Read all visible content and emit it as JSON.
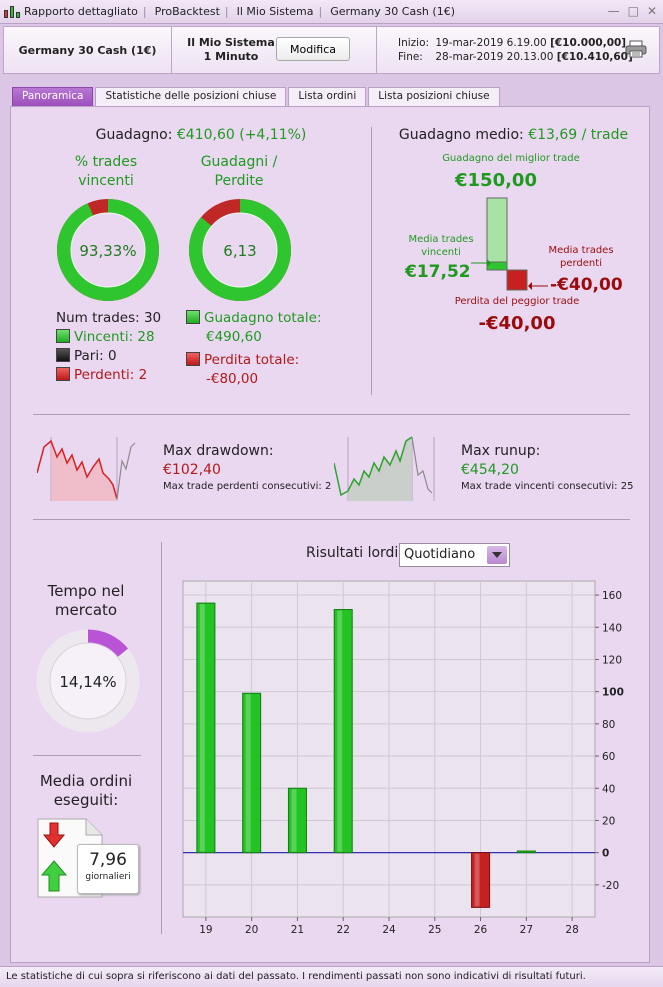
{
  "window": {
    "tab1": "Rapporto dettagliato",
    "tab2": "ProBacktest",
    "tab3": "Il Mio Sistema",
    "tab4": "Germany 30 Cash (1€)",
    "separator": "|"
  },
  "header": {
    "symbol": "Germany 30 Cash (1€)",
    "system_line1": "Il Mio Sistema",
    "system_line2": "1 Minuto",
    "modify_button": "Modifica",
    "start_label": "Inizio:",
    "start_date": "19-mar-2019 6.19.00",
    "start_capital": "[€10.000,00]",
    "end_label": "Fine:",
    "end_date": "28-mar-2019 20.13.00",
    "end_capital": "[€10.410,60]"
  },
  "tabs": [
    "Panoramica",
    "Statistiche delle posizioni chiuse",
    "Lista ordini",
    "Lista posizioni chiuse"
  ],
  "gain": {
    "label": "Guadagno:",
    "value": "€410,60 (+4,11%)"
  },
  "winrate": {
    "title_line1": "% trades",
    "title_line2": "vincenti",
    "value": "93,33%",
    "fraction": 0.9333
  },
  "gainloss": {
    "title_line1": "Guadagni /",
    "title_line2": "Perdite",
    "value": "6,13",
    "fraction": 0.86
  },
  "counts": {
    "total": "Num trades: 30",
    "winners": "Vincenti: 28",
    "even": "Pari: 0",
    "losers": "Perdenti: 2"
  },
  "totals": {
    "gain_label": "Guadagno totale:",
    "gain_value": "€490,60",
    "loss_label": "Perdita totale:",
    "loss_value": "-€80,00"
  },
  "avg": {
    "label": "Guadagno medio:",
    "value": "€13,69 / trade",
    "best_label": "Guadagno del miglior trade",
    "best_value": "€150,00",
    "avg_win_label_1": "Media trades",
    "avg_win_label_2": "vincenti",
    "avg_win_value": "€17,52",
    "avg_loss_label_1": "Media trades",
    "avg_loss_label_2": "perdenti",
    "avg_loss_value": "-€40,00",
    "worst_label": "Perdita del peggior trade",
    "worst_value": "-€40,00"
  },
  "drawdown": {
    "label": "Max drawdown:",
    "value": "€102,40",
    "consec_label": "Max trade perdenti consecutivi:",
    "consec_value": "2"
  },
  "runup": {
    "label": "Max runup:",
    "value": "€454,20",
    "consec_label": "Max trade vincenti consecutivi:",
    "consec_value": "25"
  },
  "market_time": {
    "title_line1": "Tempo nel",
    "title_line2": "mercato",
    "value": "14,14%",
    "fraction": 0.1414
  },
  "orders": {
    "title_line1": "Media ordini",
    "title_line2": "eseguiti:",
    "value": "7,96",
    "unit": "giornalieri"
  },
  "results": {
    "title": "Risultati lordi",
    "period": "Quotidiano"
  },
  "chart_data": {
    "type": "bar",
    "title": "Risultati lordi",
    "categories": [
      "19",
      "20",
      "21",
      "22",
      "24",
      "25",
      "26",
      "27",
      "28"
    ],
    "values": [
      155,
      99,
      40,
      151,
      0,
      0,
      -34,
      1,
      0
    ],
    "ylim": [
      -35,
      165
    ],
    "yticks": [
      160,
      140,
      120,
      100,
      80,
      60,
      40,
      20,
      0,
      -20
    ],
    "grid": true,
    "colors": {
      "positive": "#22c322",
      "negative": "#c62020",
      "zero_line": "#3030b0"
    }
  },
  "footer": "Le statistiche di cui sopra si riferiscono ai dati del passato. I rendimenti passati non sono indicativi di risultati futuri."
}
